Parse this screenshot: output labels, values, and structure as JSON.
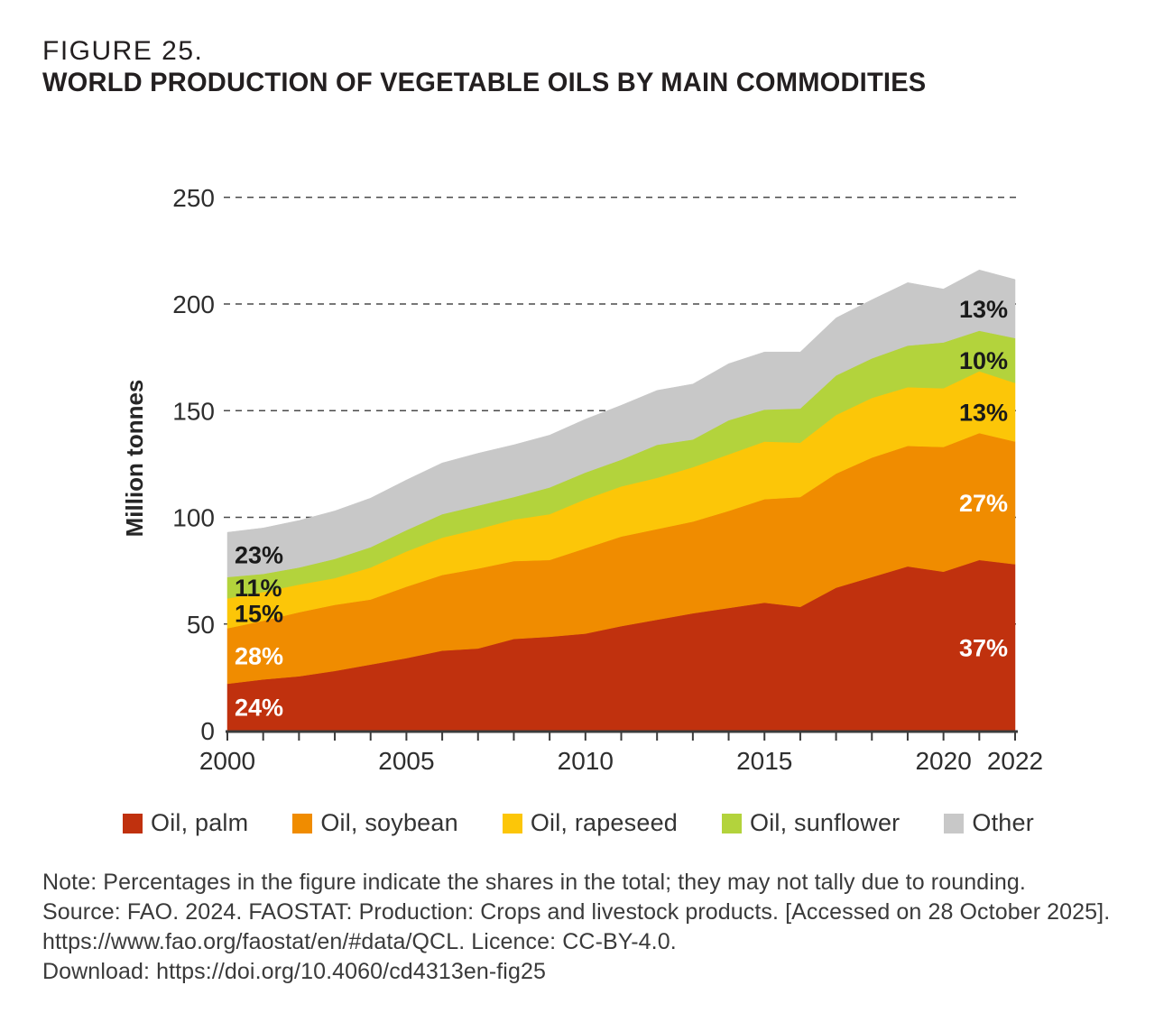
{
  "figure": {
    "label": "FIGURE 25."
  },
  "chart_data": {
    "type": "area",
    "stacked": true,
    "title": "WORLD PRODUCTION OF VEGETABLE OILS BY MAIN COMMODITIES",
    "xlabel": "",
    "ylabel": "Million tonnes",
    "x": [
      2000,
      2001,
      2002,
      2003,
      2004,
      2005,
      2006,
      2007,
      2008,
      2009,
      2010,
      2011,
      2012,
      2013,
      2014,
      2015,
      2016,
      2017,
      2018,
      2019,
      2020,
      2021,
      2022
    ],
    "xticks": [
      2000,
      2005,
      2010,
      2015,
      2020,
      2022
    ],
    "yticks": [
      0,
      50,
      100,
      150,
      200,
      250
    ],
    "ylim": [
      0,
      250
    ],
    "grid": "dashed horizontal at 50,100,150,200,250 behind areas",
    "legend_position": "bottom",
    "series": [
      {
        "name": "Oil, palm",
        "color": "#C0310E",
        "label_color": "#FFFFFF",
        "share_2000": "24%",
        "share_2022": "37%",
        "values": [
          22,
          24,
          25.5,
          28,
          31,
          34,
          37.5,
          38.5,
          43,
          44,
          45.5,
          49,
          52,
          55,
          57.5,
          60,
          58,
          67,
          72,
          77,
          74.5,
          80,
          78
        ]
      },
      {
        "name": "Oil, soybean",
        "color": "#F08C00",
        "label_color": "#FFFFFF",
        "share_2000": "28%",
        "share_2022": "27%",
        "values": [
          26,
          27.5,
          30,
          31,
          30.5,
          33.5,
          35.5,
          37.5,
          36.5,
          36,
          40,
          42,
          42.5,
          43,
          45.5,
          48.5,
          51.5,
          53.5,
          56,
          56.5,
          58.5,
          59.5,
          57.5
        ]
      },
      {
        "name": "Oil, rapeseed",
        "color": "#FCC608",
        "label_color": "#1A1A1A",
        "share_2000": "15%",
        "share_2022": "13%",
        "values": [
          14,
          13.5,
          13,
          12.5,
          15,
          16.5,
          17.5,
          18.5,
          19.5,
          21.5,
          23,
          23.5,
          24,
          25.5,
          26.5,
          27,
          25.5,
          27.5,
          28,
          27.5,
          27.5,
          29,
          27.5
        ]
      },
      {
        "name": "Oil, sunflower",
        "color": "#B3D33C",
        "label_color": "#1A1A1A",
        "share_2000": "11%",
        "share_2022": "10%",
        "values": [
          10,
          8.5,
          8,
          9,
          9.5,
          10,
          11,
          11,
          10.5,
          12.5,
          12.5,
          12.5,
          15.5,
          13,
          16,
          15,
          16,
          18.5,
          18.5,
          19.5,
          21.5,
          19,
          21
        ]
      },
      {
        "name": "Other",
        "color": "#C8C8C8",
        "label_color": "#1A1A1A",
        "share_2000": "23%",
        "share_2022": "13%",
        "values": [
          21,
          21.5,
          22,
          22.5,
          23,
          23.5,
          24,
          24.5,
          24.5,
          24.5,
          25,
          25.5,
          25.5,
          26,
          26.5,
          27,
          26.5,
          27,
          27.5,
          29.5,
          25,
          28.5,
          27.5
        ]
      }
    ]
  },
  "notes": {
    "line1": "Note: Percentages in the figure indicate the shares in the total; they may not tally due to rounding.",
    "line2": "Source: FAO. 2024. FAOSTAT: Production: Crops and livestock products. [Accessed on 28 October 2025].",
    "line3": "https://www.fao.org/faostat/en/#data/QCL. Licence: CC-BY-4.0.",
    "line4": "Download: https://doi.org/10.4060/cd4313en-fig25"
  }
}
